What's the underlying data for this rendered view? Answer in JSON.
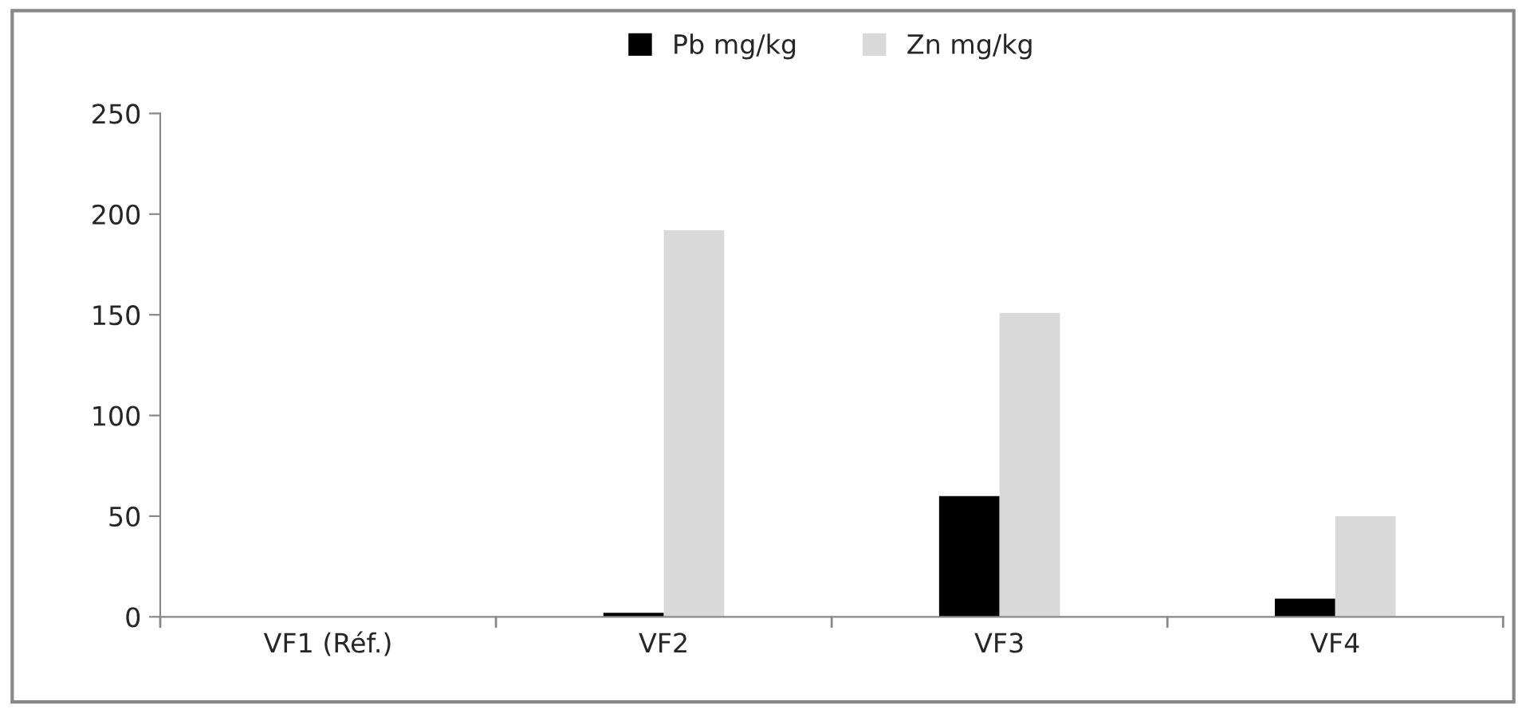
{
  "chart_data": {
    "type": "bar",
    "categories": [
      "VF1 (Réf.)",
      "VF2",
      "VF3",
      "VF4"
    ],
    "series": [
      {
        "name": "Pb mg/kg",
        "color": "#000000",
        "values": [
          null,
          2,
          60,
          9
        ]
      },
      {
        "name": "Zn mg/kg",
        "color": "#d9d9d9",
        "values": [
          null,
          192,
          151,
          50
        ]
      }
    ],
    "ylim": [
      0,
      250
    ],
    "yticks": [
      0,
      50,
      100,
      150,
      200,
      250
    ],
    "grid": false,
    "legend": "top"
  }
}
